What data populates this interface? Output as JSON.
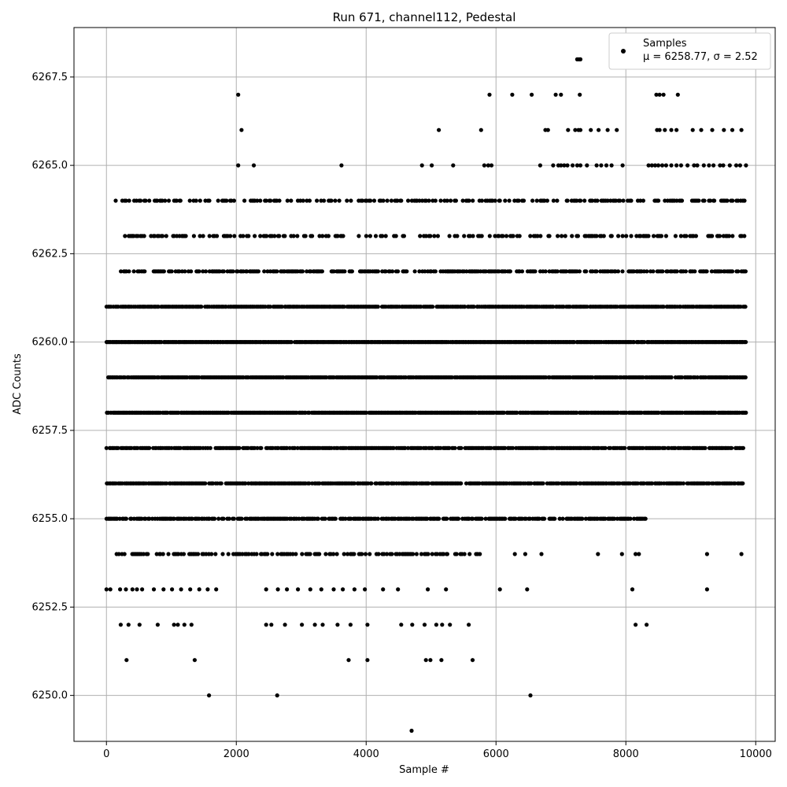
{
  "chart_data": {
    "type": "scatter",
    "title": "Run 671, channel112, Pedestal",
    "xlabel": "Sample #",
    "ylabel": "ADC Counts",
    "xlim": [
      -500,
      10300
    ],
    "ylim": [
      6248.7,
      6268.9
    ],
    "x_ticks": [
      0,
      2000,
      4000,
      6000,
      8000,
      10000
    ],
    "x_tick_labels": [
      "0",
      "2000",
      "4000",
      "6000",
      "8000",
      "10000"
    ],
    "y_ticks": [
      6250.0,
      6252.5,
      6255.0,
      6257.5,
      6260.0,
      6262.5,
      6265.0,
      6267.5
    ],
    "y_tick_labels": [
      "6250.0",
      "6252.5",
      "6255.0",
      "6257.5",
      "6260.0",
      "6262.5",
      "6265.0",
      "6267.5"
    ],
    "grid": true,
    "legend_position": "top-right",
    "series": [
      {
        "name": "Samples",
        "stats_label": "μ = 6258.77, σ = 2.52",
        "color": "#000000",
        "marker": "circle",
        "x_range": [
          0,
          9850
        ],
        "level_counts": [
          {
            "y": 6249,
            "samples": [
              4700
            ]
          },
          {
            "y": 6250,
            "samples": [
              1580,
              2630,
              6530
            ]
          },
          {
            "y": 6251,
            "samples": [
              310,
              1360,
              3730,
              4020,
              4920,
              4990,
              5160,
              5640
            ]
          },
          {
            "y": 6252,
            "samples": [
              220,
              340,
              510,
              790,
              1040,
              1100,
              1200,
              1310,
              2460,
              2540,
              2750,
              3010,
              3210,
              3330,
              3560,
              3760,
              4020,
              4540,
              4710,
              4900,
              5080,
              5170,
              5290,
              5580,
              8150,
              8320
            ]
          },
          {
            "y": 6253,
            "samples": [
              0,
              60,
              210,
              300,
              400,
              470,
              550,
              730,
              880,
              1010,
              1150,
              1290,
              1430,
              1560,
              1690,
              2460,
              2640,
              2780,
              2950,
              3140,
              3310,
              3500,
              3640,
              3820,
              3980,
              4260,
              4490,
              4950,
              5230,
              6060,
              6480,
              8100,
              9250
            ]
          },
          {
            "y": 6254,
            "samples": [
              9250,
              9780,
              7570,
              7940,
              8150,
              8200,
              6700,
              6450,
              6290
            ]
          }
        ],
        "dense_levels": [
          {
            "y": 6254,
            "from": 50,
            "to": 5800,
            "density": 0.45
          },
          {
            "y": 6255,
            "from": 0,
            "to": 8300,
            "density": 0.75
          },
          {
            "y": 6256,
            "from": 0,
            "to": 9800,
            "density": 0.85
          },
          {
            "y": 6257,
            "from": 0,
            "to": 9800,
            "density": 0.85
          },
          {
            "y": 6258,
            "from": 0,
            "to": 9850,
            "density": 0.95
          },
          {
            "y": 6259,
            "from": 0,
            "to": 9850,
            "density": 0.9
          },
          {
            "y": 6260,
            "from": 0,
            "to": 9850,
            "density": 0.98
          },
          {
            "y": 6261,
            "from": 0,
            "to": 9850,
            "density": 0.9
          },
          {
            "y": 6262,
            "from": 200,
            "to": 9850,
            "density": 0.6
          },
          {
            "y": 6263,
            "from": 280,
            "to": 9850,
            "density": 0.4
          },
          {
            "y": 6264,
            "from": 80,
            "to": 9850,
            "density": 0.45
          }
        ],
        "sparse_levels": [
          {
            "y": 6265,
            "samples": [
              2030,
              2270,
              3620,
              4860,
              5010,
              5340,
              5820,
              5880,
              5930,
              6680,
              6880,
              6960,
              7000,
              7050,
              7100,
              7180,
              7250,
              7300,
              7400,
              7550,
              7620,
              7700,
              7780,
              7950,
              8350,
              8400,
              8450,
              8500,
              8560,
              8620,
              8700,
              8780,
              8850,
              8950,
              9050,
              9100,
              9200,
              9280,
              9350,
              9450,
              9500,
              9600,
              9700,
              9760,
              9850
            ]
          },
          {
            "y": 6266,
            "samples": [
              2080,
              5120,
              5770,
              6760,
              6800,
              7110,
              7220,
              7270,
              7300,
              7460,
              7580,
              7720,
              7860,
              8480,
              8520,
              8600,
              8700,
              8780,
              9030,
              9160,
              9330,
              9510,
              9640,
              9780
            ]
          },
          {
            "y": 6267,
            "samples": [
              2030,
              5900,
              6250,
              6550,
              6920,
              7000,
              7290,
              8470,
              8520,
              8580,
              8800
            ]
          },
          {
            "y": 6268,
            "samples": [
              7250,
              7280,
              7300
            ]
          }
        ]
      }
    ]
  }
}
